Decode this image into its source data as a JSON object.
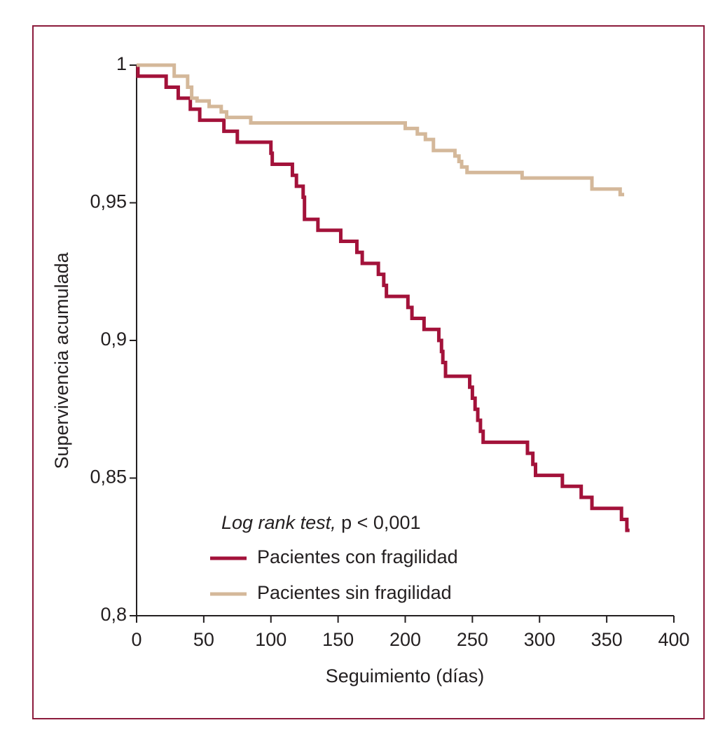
{
  "chart_data": {
    "type": "step",
    "xlabel": "Seguimiento (días)",
    "ylabel": "Supervivencia acumulada",
    "annotation_italic": "Log rank test,",
    "annotation": "p < 0,001",
    "xlim": [
      0,
      400
    ],
    "xticks": [
      0,
      50,
      100,
      150,
      200,
      250,
      300,
      350,
      400
    ],
    "ylim": [
      0.8,
      1
    ],
    "yticks": [
      {
        "value": 0.8,
        "label": "0,8"
      },
      {
        "value": 0.85,
        "label": "0,85"
      },
      {
        "value": 0.9,
        "label": "0,9"
      },
      {
        "value": 0.95,
        "label": "0,95"
      },
      1
    ],
    "grid": false,
    "series": [
      {
        "name": "Pacientes con fragilidad",
        "color": "#a3123a",
        "x": [
          0,
          1,
          22,
          31,
          40,
          47,
          65,
          75,
          100,
          101,
          116,
          119,
          124,
          125,
          135,
          152,
          164,
          168,
          180,
          184,
          186,
          202,
          205,
          214,
          225,
          227,
          228,
          230,
          248,
          250,
          252,
          254,
          256,
          258,
          291,
          295,
          297,
          317,
          331,
          339,
          361,
          365,
          367
        ],
        "values": [
          1,
          0.996,
          0.992,
          0.988,
          0.984,
          0.98,
          0.976,
          0.972,
          0.968,
          0.964,
          0.96,
          0.956,
          0.952,
          0.944,
          0.94,
          0.936,
          0.932,
          0.928,
          0.924,
          0.92,
          0.916,
          0.912,
          0.908,
          0.904,
          0.9,
          0.896,
          0.892,
          0.887,
          0.883,
          0.879,
          0.875,
          0.871,
          0.867,
          0.863,
          0.859,
          0.855,
          0.851,
          0.847,
          0.843,
          0.839,
          0.835,
          0.831,
          0.831
        ]
      },
      {
        "name": "Pacientes sin fragilidad",
        "color": "#d4b89a",
        "x": [
          0,
          28,
          38,
          41,
          45,
          54,
          63,
          67,
          85,
          200,
          209,
          215,
          221,
          237,
          240,
          242,
          246,
          287,
          339,
          360,
          363
        ],
        "values": [
          1,
          0.996,
          0.992,
          0.988,
          0.987,
          0.985,
          0.983,
          0.981,
          0.979,
          0.977,
          0.975,
          0.973,
          0.969,
          0.967,
          0.965,
          0.963,
          0.961,
          0.959,
          0.955,
          0.953,
          0.953
        ]
      }
    ]
  }
}
